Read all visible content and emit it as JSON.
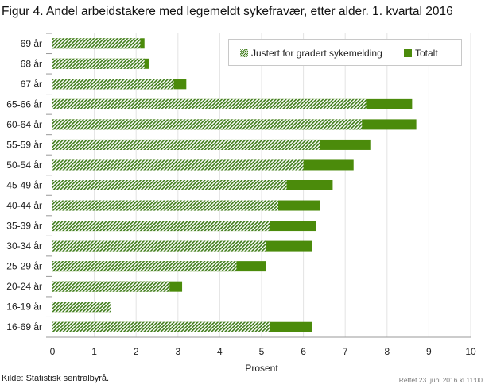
{
  "title": "Figur 4. Andel arbeidstakere med legemeldt sykefravær, etter alder. 1. kvartal 2016",
  "source": "Kilde: Statistisk sentralbyrå.",
  "updated": "Rettet 23. juni 2016 kl.11:00",
  "legend": {
    "adjusted": "Justert for gradert sykemelding",
    "total": "Totalt"
  },
  "colors": {
    "total": "#4b8b0b",
    "adjusted_hatch": "#3f7c1a",
    "grid": "#e3e3e3",
    "axis": "#999999"
  },
  "chart_data": {
    "type": "bar",
    "orientation": "horizontal",
    "title": "Figur 4. Andel arbeidstakere med legemeldt sykefravær, etter alder. 1. kvartal 2016",
    "xlabel": "Prosent",
    "ylabel": "",
    "xlim": [
      0,
      10
    ],
    "xticks": [
      "0",
      "1",
      "2",
      "3",
      "4",
      "5",
      "6",
      "7",
      "8",
      "9",
      "10"
    ],
    "grid": true,
    "legend_position": "top-right",
    "categories": [
      "69 år",
      "68 år",
      "67 år",
      "65-66 år",
      "60-64 år",
      "55-59 år",
      "50-54 år",
      "45-49 år",
      "40-44 år",
      "35-39 år",
      "30-34 år",
      "25-29 år",
      "20-24 år",
      "16-19 år",
      "16-69 år"
    ],
    "series": [
      {
        "name": "Justert for gradert sykemelding",
        "pattern": "hatched",
        "values": [
          2.1,
          2.2,
          2.9,
          7.5,
          7.4,
          6.4,
          6.0,
          5.6,
          5.4,
          5.2,
          5.1,
          4.4,
          2.8,
          1.4,
          5.2
        ]
      },
      {
        "name": "Totalt",
        "pattern": "solid",
        "values": [
          2.2,
          2.3,
          3.2,
          8.6,
          8.7,
          7.6,
          7.2,
          6.7,
          6.4,
          6.3,
          6.2,
          5.1,
          3.1,
          1.4,
          6.2
        ]
      }
    ]
  }
}
